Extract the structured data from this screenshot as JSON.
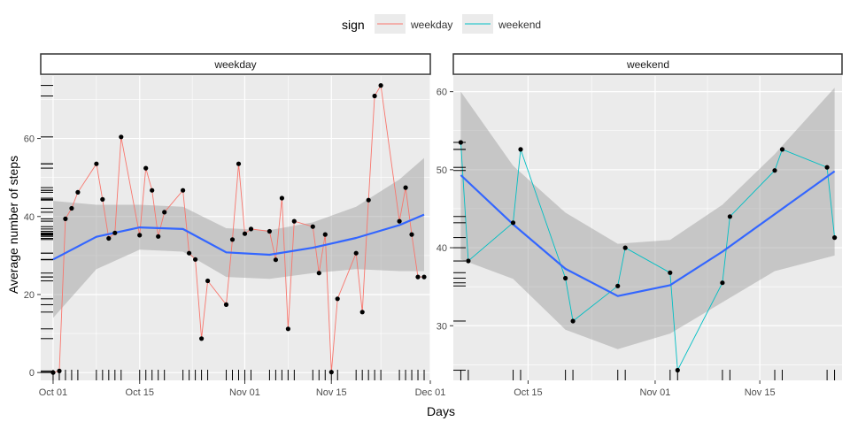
{
  "legend": {
    "title": "sign",
    "entries": [
      {
        "label": "weekday",
        "color": "#F8766D"
      },
      {
        "label": "weekend",
        "color": "#00BFC4"
      }
    ]
  },
  "axes": {
    "xlabel": "Days",
    "ylabel": "Average number of steps"
  },
  "style": {
    "smooth_color": "#3366FF",
    "ribbon_color": "#999999",
    "panel_bg": "#EBEBEB",
    "point_color": "#000000"
  },
  "chart_data": [
    {
      "type": "line",
      "panel_title": "weekday",
      "series_name": "weekday",
      "x_dates": [
        "2012-10-01",
        "2012-10-02",
        "2012-10-03",
        "2012-10-04",
        "2012-10-05",
        "2012-10-08",
        "2012-10-09",
        "2012-10-10",
        "2012-10-11",
        "2012-10-12",
        "2012-10-15",
        "2012-10-16",
        "2012-10-17",
        "2012-10-18",
        "2012-10-19",
        "2012-10-22",
        "2012-10-23",
        "2012-10-24",
        "2012-10-25",
        "2012-10-26",
        "2012-10-29",
        "2012-10-30",
        "2012-10-31",
        "2012-11-01",
        "2012-11-02",
        "2012-11-05",
        "2012-11-06",
        "2012-11-07",
        "2012-11-08",
        "2012-11-09",
        "2012-11-12",
        "2012-11-13",
        "2012-11-14",
        "2012-11-15",
        "2012-11-16",
        "2012-11-19",
        "2012-11-20",
        "2012-11-21",
        "2012-11-22",
        "2012-11-23",
        "2012-11-26",
        "2012-11-27",
        "2012-11-28",
        "2012-11-29",
        "2012-11-30"
      ],
      "y_values": [
        0,
        0.4,
        39.4,
        42.1,
        46.2,
        53.5,
        44.4,
        34.4,
        35.8,
        60.4,
        35.2,
        52.4,
        46.7,
        34.9,
        41.1,
        46.7,
        30.6,
        29.0,
        8.7,
        23.5,
        17.4,
        34.1,
        53.5,
        35.6,
        36.8,
        36.2,
        28.9,
        44.7,
        11.2,
        38.8,
        37.4,
        25.5,
        35.4,
        0.1,
        18.9,
        30.6,
        15.5,
        44.2,
        70.9,
        73.6,
        38.8,
        47.4,
        35.4,
        24.5,
        24.5
      ],
      "smooth_x_dates": [
        "2012-10-01",
        "2012-10-08",
        "2012-10-15",
        "2012-10-22",
        "2012-10-29",
        "2012-11-05",
        "2012-11-12",
        "2012-11-19",
        "2012-11-26",
        "2012-11-30"
      ],
      "smooth_y": [
        29.0,
        34.8,
        37.2,
        36.8,
        30.8,
        30.2,
        32.0,
        34.5,
        37.8,
        40.5
      ],
      "ribbon_low": [
        14.0,
        26.5,
        31.5,
        31.0,
        24.5,
        24.0,
        25.5,
        26.5,
        26.0,
        26.0
      ],
      "ribbon_high": [
        44.0,
        43.0,
        43.0,
        42.5,
        37.0,
        36.5,
        38.5,
        42.5,
        49.5,
        55.0
      ],
      "xlim": [
        "2012-09-29",
        "2012-12-01"
      ],
      "ylim": [
        -2,
        76
      ],
      "yticks": [
        0,
        20,
        40,
        60
      ],
      "xticks": [
        "Oct 01",
        "Oct 15",
        "Nov 01",
        "Nov 15",
        "Dec 01"
      ],
      "xticks_dates": [
        "2012-10-01",
        "2012-10-15",
        "2012-11-01",
        "2012-11-15",
        "2012-12-01"
      ],
      "grid": true
    },
    {
      "type": "line",
      "panel_title": "weekend",
      "series_name": "weekend",
      "x_dates": [
        "2012-10-06",
        "2012-10-07",
        "2012-10-13",
        "2012-10-14",
        "2012-10-20",
        "2012-10-21",
        "2012-10-27",
        "2012-10-28",
        "2012-11-03",
        "2012-11-04",
        "2012-11-10",
        "2012-11-11",
        "2012-11-17",
        "2012-11-18",
        "2012-11-24",
        "2012-11-25"
      ],
      "y_values": [
        53.5,
        38.3,
        43.2,
        52.6,
        36.1,
        30.6,
        35.1,
        40.0,
        36.8,
        24.3,
        35.5,
        44.0,
        49.9,
        52.6,
        50.3,
        41.3
      ],
      "smooth_x_dates": [
        "2012-10-06",
        "2012-10-13",
        "2012-10-20",
        "2012-10-27",
        "2012-11-03",
        "2012-11-10",
        "2012-11-17",
        "2012-11-25"
      ],
      "smooth_y": [
        49.3,
        43.0,
        37.3,
        33.8,
        35.2,
        39.5,
        44.3,
        49.8
      ],
      "ribbon_low": [
        38.5,
        36.0,
        29.5,
        27.0,
        29.0,
        33.0,
        37.0,
        39.0
      ],
      "ribbon_high": [
        60.0,
        50.5,
        44.5,
        40.5,
        41.0,
        45.5,
        52.0,
        60.5
      ],
      "xlim": [
        "2012-10-05",
        "2012-11-26"
      ],
      "ylim": [
        23.0,
        62.0
      ],
      "yticks": [
        30,
        40,
        50,
        60
      ],
      "xticks": [
        "Oct 15",
        "Nov 01",
        "Nov 15"
      ],
      "xticks_dates": [
        "2012-10-15",
        "2012-11-01",
        "2012-11-15"
      ],
      "grid": true
    }
  ]
}
